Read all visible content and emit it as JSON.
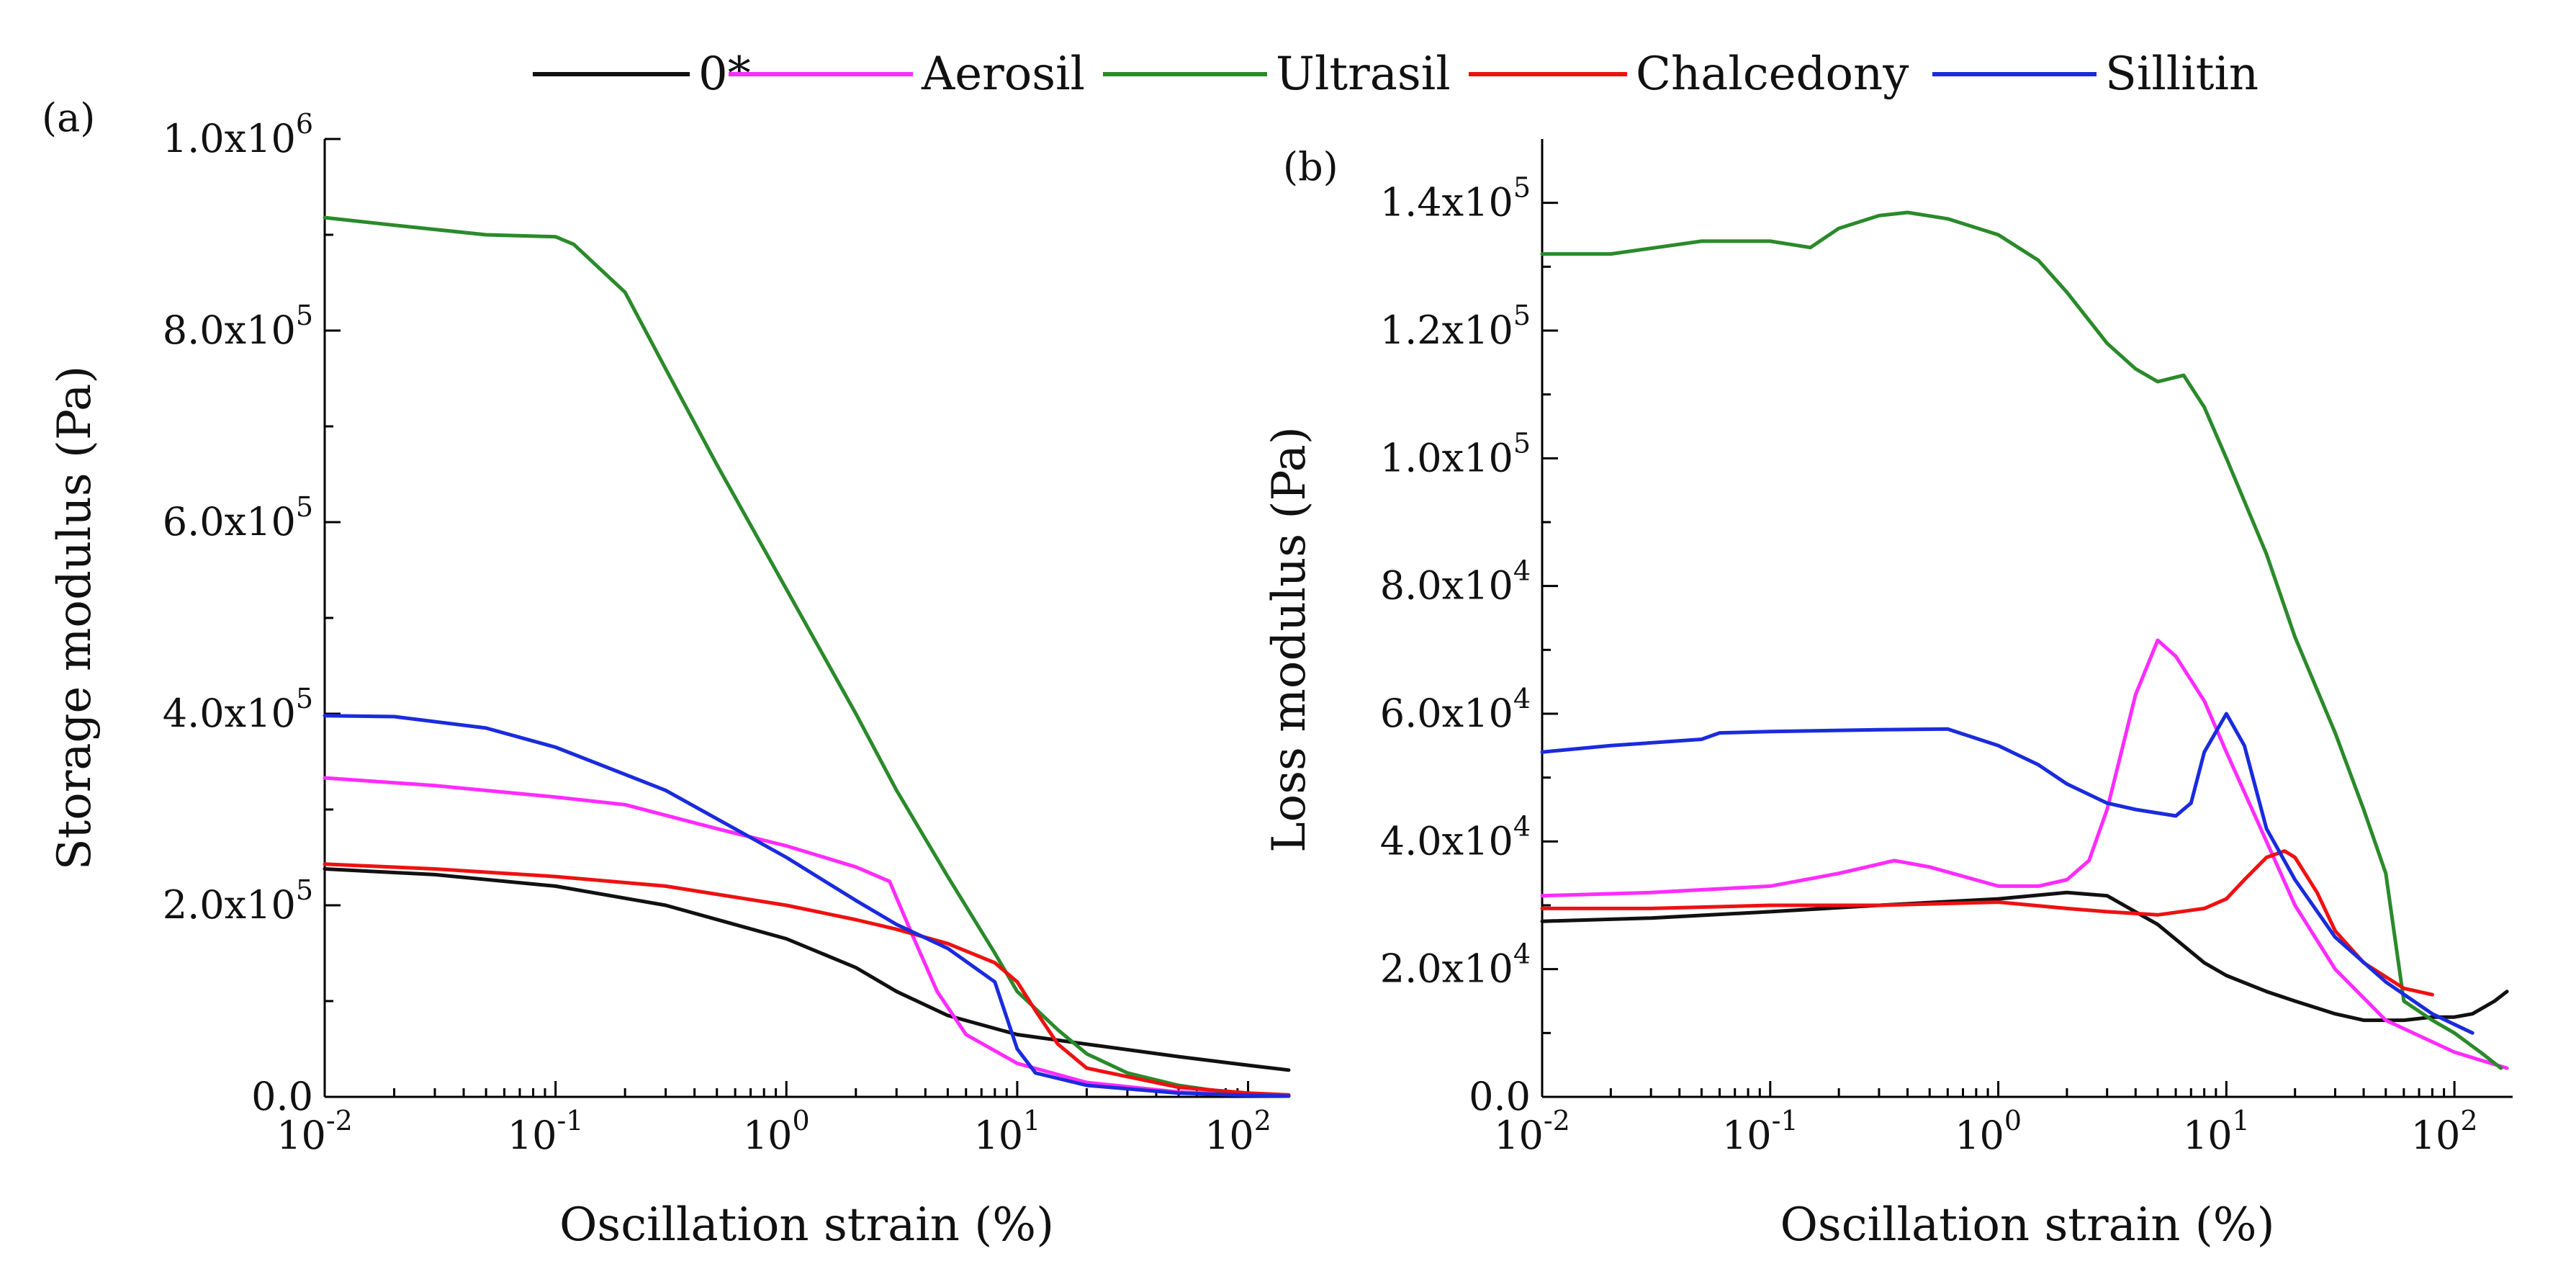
{
  "legend": [
    {
      "name": "0*",
      "color": "#111111"
    },
    {
      "name": "Aerosil",
      "color": "#ff2bff"
    },
    {
      "name": "Ultrasil",
      "color": "#2a8a2a"
    },
    {
      "name": "Chalcedony",
      "color": "#ee1111"
    },
    {
      "name": "Sillitin",
      "color": "#1a2bdd"
    }
  ],
  "chart_data": [
    {
      "type": "line",
      "panel_label": "(a)",
      "xlabel": "Oscillation strain (%)",
      "ylabel": "Storage modulus (Pa)",
      "xscale": "log",
      "xlim": [
        0.01,
        150
      ],
      "ylim": [
        0,
        1000000
      ],
      "x_ticks": [
        {
          "value": 0.01,
          "base": "10",
          "exp": "-2"
        },
        {
          "value": 0.1,
          "base": "10",
          "exp": "-1"
        },
        {
          "value": 1,
          "base": "10",
          "exp": "0"
        },
        {
          "value": 10,
          "base": "10",
          "exp": "1"
        },
        {
          "value": 100,
          "base": "10",
          "exp": "2"
        }
      ],
      "y_ticks": [
        {
          "value": 0,
          "text": "0.0",
          "exp": ""
        },
        {
          "value": 200000,
          "text": "2.0x10",
          "exp": "5"
        },
        {
          "value": 400000,
          "text": "4.0x10",
          "exp": "5"
        },
        {
          "value": 600000,
          "text": "6.0x10",
          "exp": "5"
        },
        {
          "value": 800000,
          "text": "8.0x10",
          "exp": "5"
        },
        {
          "value": 1000000,
          "text": "1.0x10",
          "exp": "6"
        }
      ],
      "series": [
        {
          "name": "0*",
          "color": "#111111",
          "x": [
            0.01,
            0.03,
            0.1,
            0.3,
            1,
            2,
            3,
            5,
            10,
            20,
            50,
            100,
            150
          ],
          "y": [
            238000,
            232000,
            220000,
            200000,
            165000,
            135000,
            110000,
            85000,
            65000,
            55000,
            42000,
            33000,
            28000
          ]
        },
        {
          "name": "Aerosil",
          "color": "#ff2bff",
          "x": [
            0.01,
            0.03,
            0.1,
            0.2,
            0.5,
            1,
            2,
            2.8,
            3.5,
            4.5,
            6,
            10,
            20,
            50,
            100,
            150
          ],
          "y": [
            333000,
            325000,
            313000,
            305000,
            280000,
            262000,
            240000,
            225000,
            170000,
            110000,
            65000,
            35000,
            15000,
            5000,
            2000,
            1000
          ]
        },
        {
          "name": "Ultrasil",
          "color": "#2a8a2a",
          "x": [
            0.01,
            0.02,
            0.05,
            0.1,
            0.12,
            0.2,
            0.3,
            0.5,
            1,
            2,
            3,
            5,
            8,
            10,
            15,
            20,
            30,
            50,
            80,
            100,
            150
          ],
          "y": [
            918000,
            910000,
            900000,
            898000,
            890000,
            840000,
            760000,
            660000,
            530000,
            400000,
            320000,
            230000,
            150000,
            110000,
            70000,
            45000,
            25000,
            12000,
            5000,
            3000,
            1000
          ]
        },
        {
          "name": "Chalcedony",
          "color": "#ee1111",
          "x": [
            0.01,
            0.03,
            0.1,
            0.3,
            1,
            2,
            3,
            5,
            8,
            10,
            12,
            15,
            20,
            50,
            100,
            150
          ],
          "y": [
            243000,
            238000,
            230000,
            220000,
            200000,
            185000,
            175000,
            160000,
            140000,
            120000,
            90000,
            55000,
            30000,
            10000,
            4000,
            2000
          ]
        },
        {
          "name": "Sillitin",
          "color": "#1a2bdd",
          "x": [
            0.01,
            0.02,
            0.05,
            0.1,
            0.3,
            1,
            2,
            3,
            5,
            8,
            10,
            12,
            20,
            50,
            100,
            150
          ],
          "y": [
            398000,
            397000,
            385000,
            365000,
            320000,
            250000,
            205000,
            180000,
            155000,
            120000,
            50000,
            25000,
            12000,
            4000,
            1500,
            800
          ]
        }
      ]
    },
    {
      "type": "line",
      "panel_label": "(b)",
      "xlabel": "Oscillation strain (%)",
      "ylabel": "Loss modulus (Pa)",
      "xscale": "log",
      "xlim": [
        0.01,
        180
      ],
      "ylim": [
        0,
        150000
      ],
      "x_ticks": [
        {
          "value": 0.01,
          "base": "10",
          "exp": "-2"
        },
        {
          "value": 0.1,
          "base": "10",
          "exp": "-1"
        },
        {
          "value": 1,
          "base": "10",
          "exp": "0"
        },
        {
          "value": 10,
          "base": "10",
          "exp": "1"
        },
        {
          "value": 100,
          "base": "10",
          "exp": "2"
        }
      ],
      "y_ticks": [
        {
          "value": 0,
          "text": "0.0",
          "exp": ""
        },
        {
          "value": 20000,
          "text": "2.0x10",
          "exp": "4"
        },
        {
          "value": 40000,
          "text": "4.0x10",
          "exp": "4"
        },
        {
          "value": 60000,
          "text": "6.0x10",
          "exp": "4"
        },
        {
          "value": 80000,
          "text": "8.0x10",
          "exp": "4"
        },
        {
          "value": 100000,
          "text": "1.0x10",
          "exp": "5"
        },
        {
          "value": 120000,
          "text": "1.2x10",
          "exp": "5"
        },
        {
          "value": 140000,
          "text": "1.4x10",
          "exp": "5"
        }
      ],
      "series": [
        {
          "name": "0*",
          "color": "#111111",
          "x": [
            0.01,
            0.03,
            0.1,
            0.3,
            1,
            2,
            3,
            5,
            8,
            10,
            15,
            20,
            30,
            40,
            60,
            80,
            100,
            120,
            150,
            170
          ],
          "y": [
            27500,
            28000,
            29000,
            30000,
            31000,
            32000,
            31500,
            27000,
            21000,
            19000,
            16500,
            15000,
            13000,
            12000,
            12000,
            12500,
            12500,
            13000,
            15000,
            16500
          ]
        },
        {
          "name": "Aerosil",
          "color": "#ff2bff",
          "x": [
            0.01,
            0.03,
            0.1,
            0.2,
            0.35,
            0.5,
            1,
            1.5,
            2,
            2.5,
            3,
            4,
            5,
            6,
            8,
            10,
            15,
            20,
            30,
            50,
            100,
            170
          ],
          "y": [
            31500,
            32000,
            33000,
            35000,
            37000,
            36000,
            33000,
            33000,
            34000,
            37000,
            45000,
            63000,
            71500,
            69000,
            62000,
            54000,
            40000,
            30000,
            20000,
            12000,
            7000,
            4500
          ]
        },
        {
          "name": "Ultrasil",
          "color": "#2a8a2a",
          "x": [
            0.01,
            0.02,
            0.05,
            0.1,
            0.15,
            0.2,
            0.3,
            0.4,
            0.6,
            1,
            1.5,
            2,
            3,
            4,
            5,
            6.5,
            8,
            10,
            15,
            20,
            30,
            40,
            50,
            60,
            80,
            100,
            130,
            160
          ],
          "y": [
            132000,
            132000,
            134000,
            134000,
            133000,
            136000,
            138000,
            138500,
            137500,
            135000,
            131000,
            126000,
            118000,
            114000,
            112000,
            113000,
            108000,
            100000,
            85000,
            72000,
            57000,
            45000,
            35000,
            15000,
            12000,
            10000,
            7000,
            4500
          ]
        },
        {
          "name": "Chalcedony",
          "color": "#ee1111",
          "x": [
            0.01,
            0.03,
            0.1,
            0.3,
            1,
            2,
            3,
            5,
            8,
            10,
            12,
            15,
            18,
            20,
            25,
            30,
            40,
            60,
            80
          ],
          "y": [
            29500,
            29500,
            30000,
            30000,
            30500,
            29500,
            29000,
            28500,
            29500,
            31000,
            34000,
            37500,
            38500,
            37500,
            32000,
            26000,
            21000,
            17000,
            16000
          ]
        },
        {
          "name": "Sillitin",
          "color": "#1a2bdd",
          "x": [
            0.01,
            0.02,
            0.05,
            0.06,
            0.1,
            0.3,
            0.6,
            1,
            1.5,
            2,
            3,
            4,
            6,
            7,
            8,
            10,
            12,
            15,
            20,
            30,
            50,
            80,
            120
          ],
          "y": [
            54000,
            55000,
            56000,
            57000,
            57200,
            57500,
            57600,
            55000,
            52000,
            49000,
            46000,
            45000,
            44000,
            46000,
            54000,
            60000,
            55000,
            42000,
            34000,
            25000,
            18000,
            13000,
            10000
          ]
        }
      ]
    }
  ]
}
